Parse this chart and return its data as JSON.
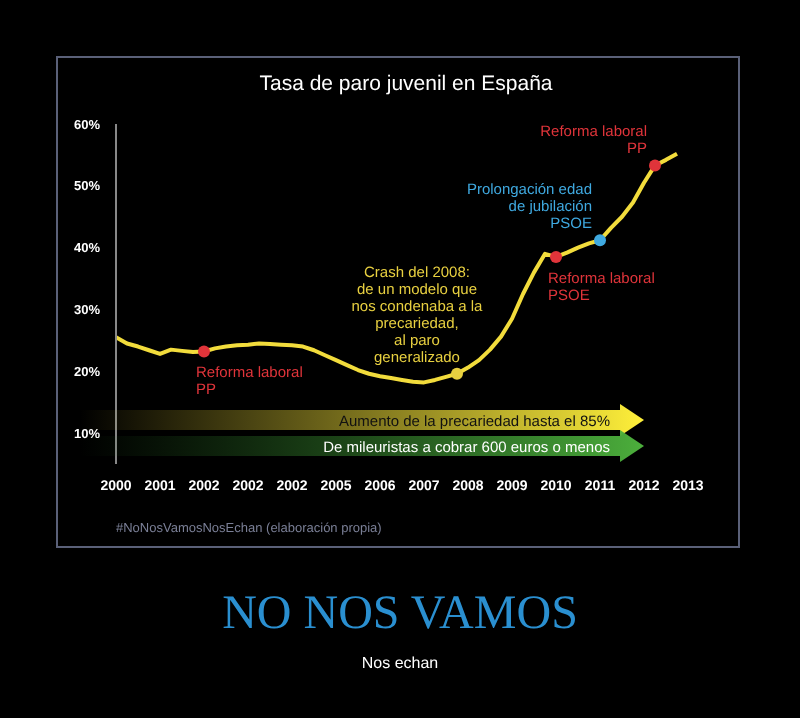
{
  "chart_data": {
    "type": "line",
    "title": "Tasa de paro juvenil en España",
    "categories": [
      "2000",
      null,
      null,
      null,
      "2001",
      null,
      null,
      null,
      "2002",
      null,
      null,
      null,
      "2002",
      null,
      null,
      null,
      "2002",
      null,
      null,
      null,
      "2005",
      null,
      null,
      null,
      "2006",
      null,
      null,
      null,
      "2007",
      null,
      null,
      null,
      "2008",
      null,
      null,
      null,
      "2009",
      null,
      null,
      null,
      "2010",
      null,
      null,
      null,
      "2011",
      null,
      null,
      null,
      "2012",
      null,
      null,
      null,
      "2013"
    ],
    "ylim": [
      5,
      60
    ],
    "yticks": [
      {
        "value": 10,
        "label": "10%"
      },
      {
        "value": 20,
        "label": "20%"
      },
      {
        "value": 30,
        "label": "30%"
      },
      {
        "value": 40,
        "label": "40%"
      },
      {
        "value": 50,
        "label": "50%"
      },
      {
        "value": 60,
        "label": "60%"
      }
    ],
    "series": [
      {
        "color": "#f2dc3c",
        "values": [
          25.5,
          24.5,
          24,
          23.4,
          22.8,
          23.5,
          23.3,
          23.1,
          23.2,
          23.7,
          24,
          24.2,
          24.3,
          24.5,
          24.4,
          24.3,
          24.2,
          24,
          23.4,
          22.6,
          21.8,
          21,
          20.2,
          19.6,
          19.2,
          18.9,
          18.6,
          18.3,
          18.2,
          18.6,
          19.1,
          19.6,
          20.6,
          21.8,
          23.5,
          25.6,
          28.5,
          32.5,
          36,
          39,
          38.5,
          39.2,
          40,
          40.7,
          41.2,
          43.2,
          45,
          47.3,
          50.5,
          53.3,
          54.2,
          55.2,
          null
        ]
      },
      {
        "type": "scatter",
        "values": [
          null,
          null,
          null,
          null,
          null,
          null,
          null,
          null,
          23.2,
          null,
          null,
          null,
          null,
          null,
          null,
          null,
          null,
          null,
          null,
          null,
          null,
          null,
          null,
          null,
          null,
          null,
          null,
          null,
          null,
          null,
          null,
          19.6,
          null,
          null,
          null,
          null,
          null,
          null,
          null,
          null,
          38.5,
          null,
          null,
          null,
          41.2,
          null,
          null,
          null,
          null,
          53.3,
          null,
          null,
          null
        ],
        "colors": [
          null,
          null,
          null,
          null,
          null,
          null,
          null,
          null,
          "#e0343a",
          null,
          null,
          null,
          null,
          null,
          null,
          null,
          null,
          null,
          null,
          null,
          null,
          null,
          null,
          null,
          null,
          null,
          null,
          null,
          null,
          null,
          null,
          "#e8d040",
          null,
          null,
          null,
          null,
          null,
          null,
          null,
          null,
          "#e0343a",
          null,
          null,
          null,
          "#3fa9e0",
          null,
          null,
          null,
          null,
          "#e0343a",
          null,
          null,
          null
        ]
      }
    ],
    "annotations": [
      "Aumento de la precariedad hasta el 85%",
      "De mileuristas a cobrar 600 euros o menos",
      "#NoNosVamosNosEchan (elaboración propia)",
      "NO NOS VAMOS",
      "Nos echan",
      "Reforma laboral\nPP",
      "Crash del 2008:\nde un modelo que\nnos condenaba a la\nprecariedad,\nal paro\ngeneralizado",
      "Reforma laboral\nPSOE",
      "Prolongación edad\nde jubilación\nPSOE",
      "Reforma laboral\nPP"
    ],
    "grid": false
  }
}
